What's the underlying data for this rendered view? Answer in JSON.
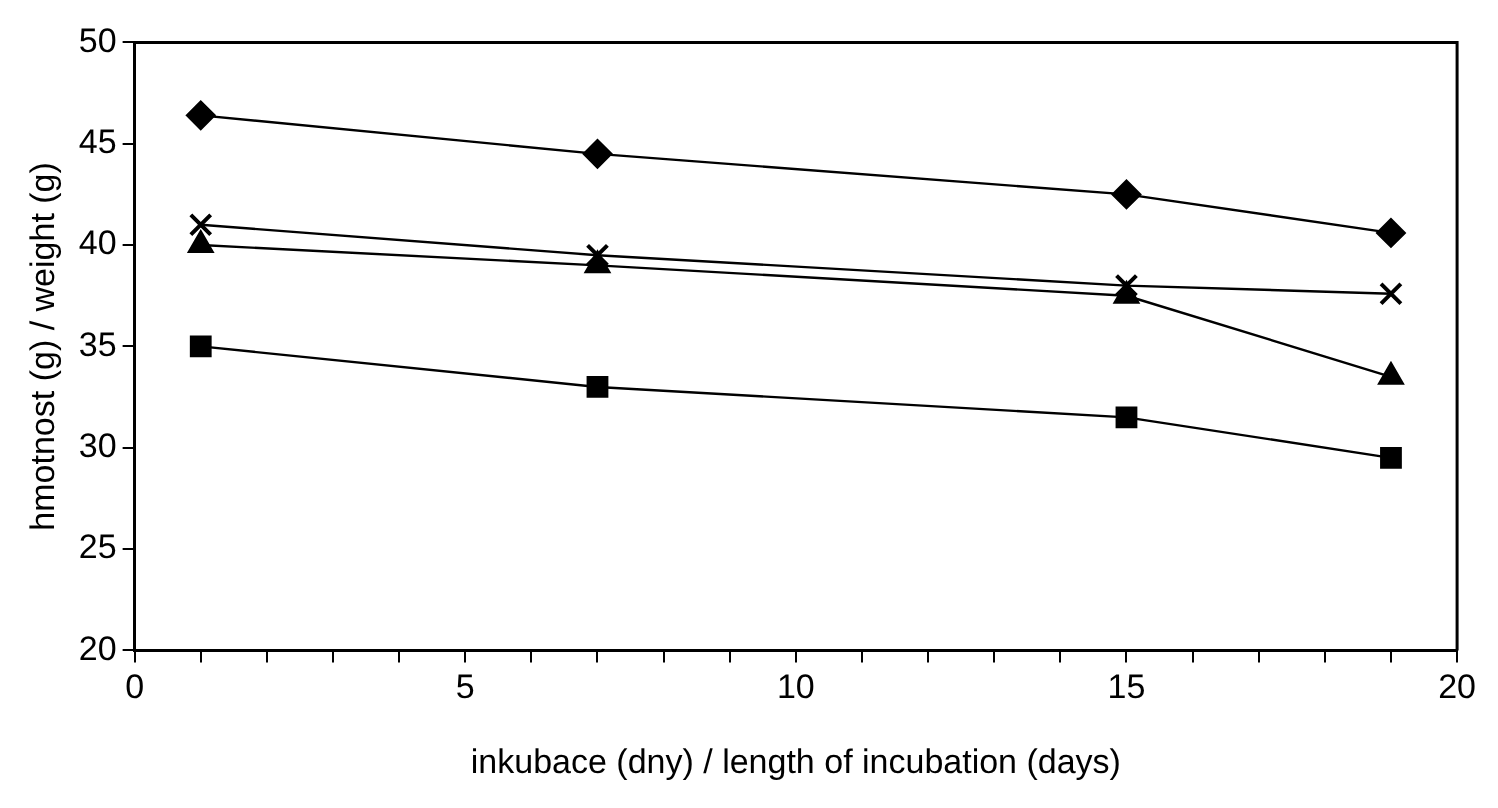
{
  "chart_data": {
    "type": "line",
    "xlabel": "inkubace (dny) / length of incubation (days)",
    "ylabel": "hmotnost (g) / weight (g)",
    "x": [
      1,
      7,
      15,
      19
    ],
    "series": [
      {
        "color": "#000000",
        "marker": "diamond",
        "values": [
          46.4,
          44.5,
          42.5,
          40.6
        ]
      },
      {
        "color": "#000000",
        "marker": "cross",
        "values": [
          41,
          39.5,
          38,
          37.6
        ]
      },
      {
        "color": "#000000",
        "marker": "triangle",
        "values": [
          40,
          39,
          37.5,
          33.5
        ]
      },
      {
        "color": "#000000",
        "marker": "square",
        "values": [
          35,
          33,
          31.5,
          29.5
        ]
      }
    ],
    "xlim": [
      0,
      20
    ],
    "ylim": [
      20,
      50
    ],
    "xticks": [
      0,
      {
        "value": 1,
        "label": null
      },
      {
        "value": 2,
        "label": null
      },
      {
        "value": 3,
        "label": null
      },
      {
        "value": 4,
        "label": null
      },
      5,
      {
        "value": 6,
        "label": null
      },
      {
        "value": 7,
        "label": null
      },
      {
        "value": 8,
        "label": null
      },
      {
        "value": 9,
        "label": null
      },
      10,
      {
        "value": 11,
        "label": null
      },
      {
        "value": 12,
        "label": null
      },
      {
        "value": 13,
        "label": null
      },
      {
        "value": 14,
        "label": null
      },
      15,
      {
        "value": 16,
        "label": null
      },
      {
        "value": 17,
        "label": null
      },
      {
        "value": 18,
        "label": null
      },
      {
        "value": 19,
        "label": null
      },
      20
    ],
    "yticks": [
      20,
      25,
      30,
      35,
      40,
      45,
      50
    ],
    "grid": false,
    "legend": false
  }
}
